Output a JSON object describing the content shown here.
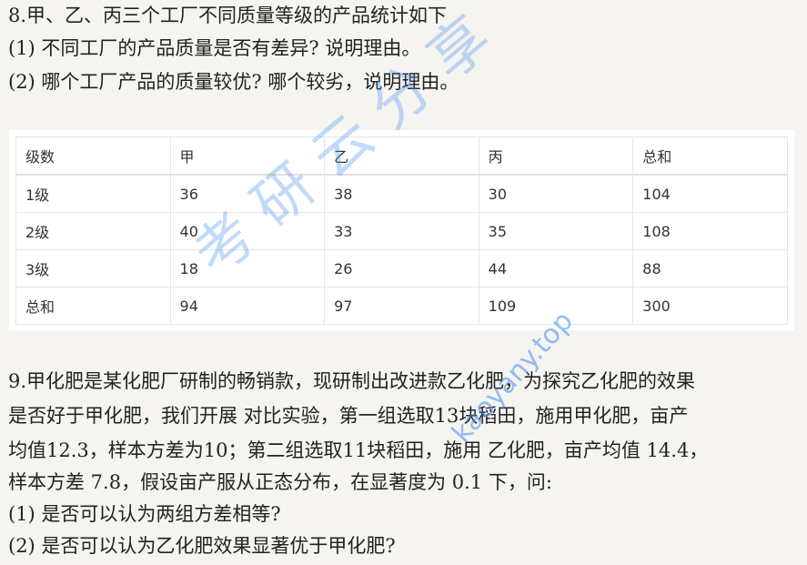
{
  "q8": {
    "title": "8.甲、乙、丙三个工厂不同质量等级的产品统计如下",
    "sub1": "(1) 不同工厂的产品质量是否有差异? 说明理由。",
    "sub2": "(2) 哪个工厂产品的质量较优? 哪个较劣，说明理由。"
  },
  "table": {
    "headers": [
      "级数",
      "甲",
      "乙",
      "丙",
      "总和"
    ],
    "rows": [
      [
        "1级",
        "36",
        "38",
        "30",
        "104"
      ],
      [
        "2级",
        "40",
        "33",
        "35",
        "108"
      ],
      [
        "3级",
        "18",
        "26",
        "44",
        "88"
      ],
      [
        "总和",
        "94",
        "97",
        "109",
        "300"
      ]
    ]
  },
  "q9": {
    "lines": [
      "9.甲化肥是某化肥厂研制的畅销款，现研制出改进款乙化肥，为探究乙化肥的效果",
      "是否好于甲化肥，我们开展 对比实验，第一组选取13块稻田，施用甲化肥，亩产",
      "均值12.3，样本方差为10；第二组选取11块稻田，施用 乙化肥，亩产均值 14.4，",
      "样本方差 7.8，假设亩产服从正态分布，在显著度为 0.1 下，问:",
      "(1) 是否可以认为两组方差相等?",
      "(2) 是否可以认为乙化肥效果显著优于甲化肥?"
    ]
  },
  "watermark": {
    "cn": "考研云分享",
    "url": "kaoyany.top"
  }
}
